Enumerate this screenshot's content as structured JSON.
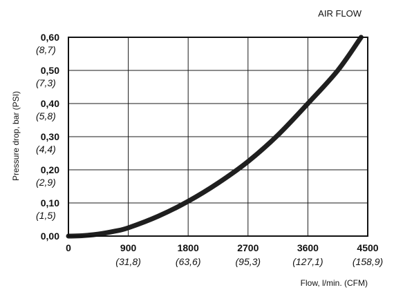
{
  "chart_data": {
    "type": "line",
    "title": "AIR FLOW",
    "ylabel": "Pressure drop, bar (PSI)",
    "xlabel": "Flow, l/min. (CFM)",
    "xlim": [
      0,
      4500
    ],
    "ylim": [
      0,
      0.6
    ],
    "grid": true,
    "x_ticks": [
      {
        "value": 0,
        "label": "0",
        "sub": ""
      },
      {
        "value": 900,
        "label": "900",
        "sub": "(31,8)"
      },
      {
        "value": 1800,
        "label": "1800",
        "sub": "(63,6)"
      },
      {
        "value": 2700,
        "label": "2700",
        "sub": "(95,3)"
      },
      {
        "value": 3600,
        "label": "3600",
        "sub": "(127,1)"
      },
      {
        "value": 4500,
        "label": "4500",
        "sub": "(158,9)"
      }
    ],
    "y_ticks": [
      {
        "value": 0,
        "label": "0,00",
        "sub": ""
      },
      {
        "value": 0.1,
        "label": "0,10",
        "sub": "(1,5)"
      },
      {
        "value": 0.2,
        "label": "0,20",
        "sub": "(2,9)"
      },
      {
        "value": 0.3,
        "label": "0,30",
        "sub": "(4,4)"
      },
      {
        "value": 0.4,
        "label": "0,40",
        "sub": "(5,8)"
      },
      {
        "value": 0.5,
        "label": "0,50",
        "sub": "(7,3)"
      },
      {
        "value": 0.6,
        "label": "0,60",
        "sub": "(8,7)"
      }
    ],
    "series": [
      {
        "x": [
          0,
          200,
          450,
          700,
          900,
          1350,
          1800,
          2250,
          2700,
          3150,
          3600,
          4050,
          4400
        ],
        "y": [
          0,
          0.001,
          0.006,
          0.015,
          0.025,
          0.06,
          0.105,
          0.16,
          0.225,
          0.305,
          0.4,
          0.5,
          0.6
        ]
      }
    ]
  }
}
